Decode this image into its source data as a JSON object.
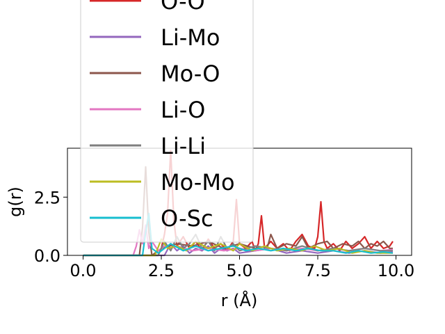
{
  "chart_data": {
    "type": "line",
    "xlabel": "r (Å)",
    "ylabel": "g(r)",
    "xlim": [
      -0.5,
      10.5
    ],
    "ylim": [
      0,
      4.6
    ],
    "xticks": [
      "0.0",
      "2.5",
      "5.0",
      "7.5",
      "10.0"
    ],
    "yticks": [
      "0.0",
      "2.5"
    ],
    "legend_position": "upper-left",
    "series": [
      {
        "name": "O-O",
        "color": "#d62728",
        "x": [
          0,
          2.4,
          2.5,
          2.6,
          2.7,
          2.8,
          2.9,
          3.0,
          3.2,
          3.4,
          3.6,
          3.8,
          4.0,
          4.2,
          4.4,
          4.6,
          4.8,
          4.9,
          5.0,
          5.2,
          5.4,
          5.5,
          5.6,
          5.7,
          5.8,
          6.0,
          6.2,
          6.4,
          6.6,
          6.8,
          7.0,
          7.2,
          7.4,
          7.5,
          7.6,
          7.7,
          7.8,
          8.0,
          8.2,
          8.4,
          8.6,
          8.8,
          9.0,
          9.2,
          9.4,
          9.6,
          9.8,
          9.9
        ],
        "y": [
          0,
          0,
          0.3,
          0.9,
          1.8,
          4.5,
          1.5,
          0.4,
          0.8,
          0.3,
          0.6,
          0.2,
          0.7,
          0.3,
          0.5,
          0.2,
          0.6,
          2.4,
          0.5,
          0.3,
          0.6,
          0.2,
          0.5,
          1.7,
          0.3,
          0.6,
          0.3,
          0.5,
          0.2,
          0.6,
          0.9,
          0.4,
          0.3,
          0.8,
          2.3,
          0.6,
          0.3,
          0.5,
          0.2,
          0.6,
          0.3,
          0.5,
          0.8,
          0.3,
          0.6,
          0.3,
          0.4,
          0.6
        ]
      },
      {
        "name": "Li-Mo",
        "color": "#9467bd",
        "x": [
          0,
          2.6,
          2.8,
          3.0,
          3.2,
          3.4,
          3.6,
          3.8,
          4.0,
          4.2,
          4.4,
          4.6,
          4.8,
          5.0,
          5.5,
          6.0,
          6.5,
          7.0,
          7.5,
          8.0,
          8.5,
          9.0,
          9.5,
          9.9
        ],
        "y": [
          0,
          0,
          0.5,
          0.2,
          0.4,
          0.1,
          0.3,
          0.2,
          0.4,
          0.1,
          0.3,
          0.2,
          0.3,
          0.1,
          0.2,
          0.3,
          0.1,
          0.2,
          0.1,
          0.2,
          0.1,
          0.2,
          0.1,
          0.15
        ]
      },
      {
        "name": "Mo-O",
        "color": "#8c564b",
        "x": [
          0,
          1.8,
          1.9,
          2.0,
          2.1,
          2.2,
          2.5,
          3.0,
          3.5,
          4.0,
          4.5,
          5.0,
          5.5,
          5.9,
          6.0,
          6.2,
          6.5,
          6.8,
          7.0,
          7.2,
          7.5,
          7.8,
          8.0,
          8.3,
          8.6,
          8.8,
          9.0,
          9.2,
          9.4,
          9.6,
          9.8,
          9.9
        ],
        "y": [
          0,
          0,
          1.2,
          3.8,
          1.0,
          0,
          0.3,
          0.5,
          0.4,
          0.6,
          0.3,
          0.5,
          0.3,
          0.4,
          0.9,
          0.3,
          0.5,
          0.4,
          0.8,
          0.3,
          0.5,
          0.6,
          0.3,
          0.5,
          0.4,
          0.6,
          0.3,
          0.5,
          0.4,
          0.6,
          0.3,
          0.3
        ]
      },
      {
        "name": "Li-O",
        "color": "#e377c2",
        "x": [
          0,
          1.6,
          1.7,
          1.8,
          1.9,
          2.0,
          2.1,
          2.2,
          2.4,
          2.6,
          2.8,
          3.0,
          3.5,
          4.0,
          4.5,
          5.0,
          5.5,
          6.0,
          6.5,
          7.0,
          7.5,
          8.0,
          8.5,
          9.0,
          9.5,
          9.9
        ],
        "y": [
          0,
          0,
          0.4,
          1.1,
          0.5,
          1.3,
          0.3,
          0.6,
          0.2,
          0.4,
          0.3,
          0.4,
          0.2,
          0.3,
          0.2,
          0.3,
          0.2,
          0.3,
          0.2,
          0.3,
          0.2,
          0.3,
          0.2,
          0.3,
          0.2,
          0.25
        ]
      },
      {
        "name": "Li-Li",
        "color": "#7f7f7f",
        "x": [
          0,
          2.4,
          2.6,
          2.8,
          3.0,
          3.2,
          3.4,
          3.6,
          3.8,
          4.0,
          4.2,
          4.4,
          4.6,
          4.8,
          5.0,
          5.5,
          6.0,
          6.5,
          7.0,
          7.5,
          8.0,
          8.5,
          9.0,
          9.5,
          9.9
        ],
        "y": [
          0,
          0,
          0.6,
          0.2,
          0.8,
          0.3,
          0.5,
          0.9,
          0.3,
          0.6,
          0.2,
          0.8,
          0.3,
          0.5,
          0.2,
          0.4,
          0.3,
          0.2,
          0.4,
          0.2,
          0.3,
          0.2,
          0.3,
          0.2,
          0.2
        ]
      },
      {
        "name": "Mo-Mo",
        "color": "#bcbd22",
        "x": [
          0,
          2.3,
          2.5,
          2.7,
          3.0,
          3.3,
          3.6,
          4.0,
          4.4,
          4.8,
          5.0,
          5.4,
          5.8,
          6.2,
          6.6,
          7.0,
          7.4,
          7.8,
          8.2,
          8.6,
          9.0,
          9.4,
          9.9
        ],
        "y": [
          0,
          0,
          0.7,
          0.3,
          0.4,
          0.2,
          0.6,
          0.3,
          0.5,
          0.2,
          0.5,
          0.2,
          0.4,
          0.2,
          0.3,
          0.2,
          0.4,
          0.2,
          0.3,
          0.1,
          0.2,
          0.1,
          0.1
        ]
      },
      {
        "name": "O-Sc",
        "color": "#17becf",
        "x": [
          0,
          1.9,
          2.0,
          2.1,
          2.2,
          2.4,
          2.8,
          3.2,
          3.6,
          4.0,
          4.4,
          4.8,
          5.2,
          5.6,
          6.0,
          6.4,
          6.8,
          7.2,
          7.6,
          8.0,
          8.4,
          8.8,
          9.2,
          9.6,
          9.9
        ],
        "y": [
          0,
          0,
          1.0,
          1.8,
          0.3,
          0.1,
          0.5,
          0.2,
          0.4,
          0.2,
          0.3,
          0.4,
          0.2,
          0.3,
          0.2,
          0.3,
          0.2,
          0.3,
          0.2,
          0.2,
          0.1,
          0.2,
          0.1,
          0.15,
          0.1
        ]
      }
    ]
  }
}
